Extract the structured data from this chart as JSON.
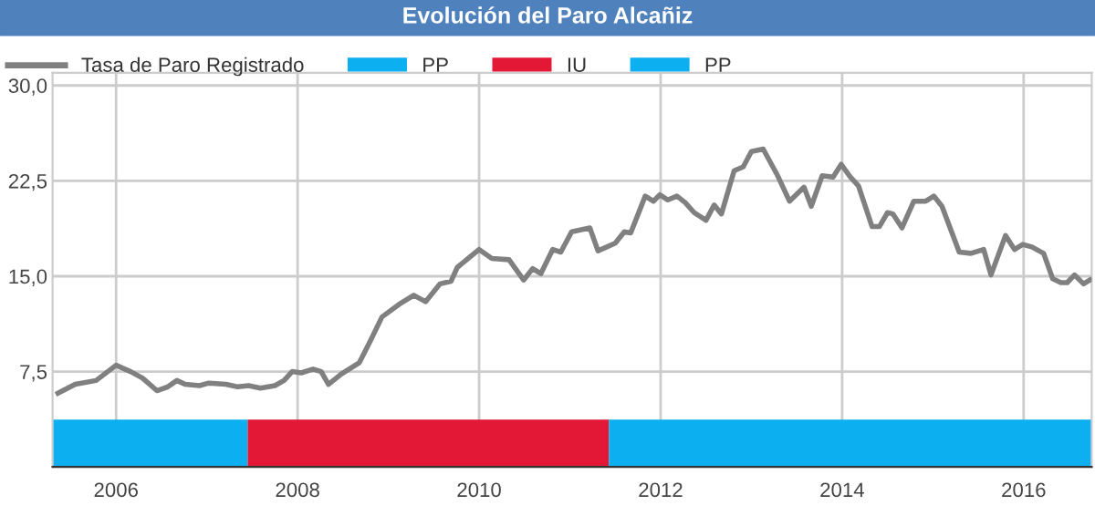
{
  "chart_data": {
    "type": "line",
    "title": "Evolución del Paro Alcañiz",
    "x": [
      2005.36,
      2005.55,
      2005.78,
      2006.0,
      2006.16,
      2006.29,
      2006.45,
      2006.57,
      2006.67,
      2006.76,
      2006.92,
      2007.02,
      2007.21,
      2007.34,
      2007.46,
      2007.59,
      2007.75,
      2007.85,
      2007.94,
      2008.04,
      2008.17,
      2008.26,
      2008.34,
      2008.48,
      2008.68,
      2008.8,
      2008.93,
      2009.12,
      2009.28,
      2009.41,
      2009.57,
      2009.69,
      2009.76,
      2010.0,
      2010.14,
      2010.33,
      2010.49,
      2010.59,
      2010.68,
      2010.81,
      2010.9,
      2011.02,
      2011.22,
      2011.31,
      2011.5,
      2011.6,
      2011.67,
      2011.83,
      2011.92,
      2011.99,
      2012.08,
      2012.18,
      2012.27,
      2012.37,
      2012.5,
      2012.59,
      2012.67,
      2012.81,
      2012.91,
      2013.0,
      2013.13,
      2013.29,
      2013.42,
      2013.58,
      2013.66,
      2013.78,
      2013.9,
      2013.99,
      2014.09,
      2014.18,
      2014.33,
      2014.41,
      2014.5,
      2014.56,
      2014.66,
      2014.79,
      2014.92,
      2015.01,
      2015.1,
      2015.29,
      2015.42,
      2015.56,
      2015.64,
      2015.8,
      2015.9,
      2015.99,
      2016.09,
      2016.22,
      2016.32,
      2016.41,
      2016.48,
      2016.56,
      2016.66,
      2016.73
    ],
    "series": [
      {
        "name": "Tasa de Paro Registrado",
        "color": "#808080",
        "values": [
          5.8,
          6.5,
          6.8,
          8.0,
          7.5,
          7.0,
          6.0,
          6.3,
          6.8,
          6.5,
          6.4,
          6.6,
          6.5,
          6.3,
          6.4,
          6.2,
          6.4,
          6.8,
          7.5,
          7.4,
          7.7,
          7.5,
          6.5,
          7.3,
          8.2,
          9.9,
          11.8,
          12.8,
          13.5,
          13.0,
          14.4,
          14.6,
          15.7,
          17.1,
          16.4,
          16.3,
          14.7,
          15.6,
          15.2,
          17.1,
          16.9,
          18.5,
          18.8,
          17.0,
          17.6,
          18.5,
          18.4,
          21.3,
          20.9,
          21.4,
          21.0,
          21.3,
          20.8,
          20.0,
          19.4,
          20.6,
          19.9,
          23.3,
          23.6,
          24.8,
          25.0,
          22.9,
          20.9,
          22.0,
          20.5,
          22.9,
          22.8,
          23.8,
          22.8,
          22.1,
          18.9,
          18.9,
          20.0,
          19.9,
          18.8,
          20.9,
          20.9,
          21.3,
          20.5,
          16.9,
          16.8,
          17.1,
          15.1,
          18.2,
          17.1,
          17.5,
          17.3,
          16.8,
          14.8,
          14.5,
          14.5,
          15.1,
          14.4,
          14.7
        ]
      }
    ],
    "xlim": [
      2005.3,
      2016.75
    ],
    "xticks": [
      2006,
      2008,
      2010,
      2012,
      2014,
      2016
    ],
    "ylim": [
      0,
      31
    ],
    "yticks": [
      {
        "value": 7.5,
        "label": "7,5"
      },
      {
        "value": 15,
        "label": "15,0"
      },
      {
        "value": 22.5,
        "label": "22,5"
      },
      {
        "value": 30,
        "label": "30,0"
      }
    ],
    "bands": [
      {
        "axis": "x",
        "from": 2005.3,
        "to": 2007.45,
        "label": "PP",
        "color": "#0cb0f0"
      },
      {
        "axis": "x",
        "from": 2007.45,
        "to": 2011.43,
        "label": "IU",
        "color": "#e31837"
      },
      {
        "axis": "x",
        "from": 2011.43,
        "to": 2016.75,
        "label": "PP",
        "color": "#0cb0f0"
      }
    ],
    "grid": true,
    "legend": "top",
    "marker": "none",
    "line_style": "solid"
  }
}
